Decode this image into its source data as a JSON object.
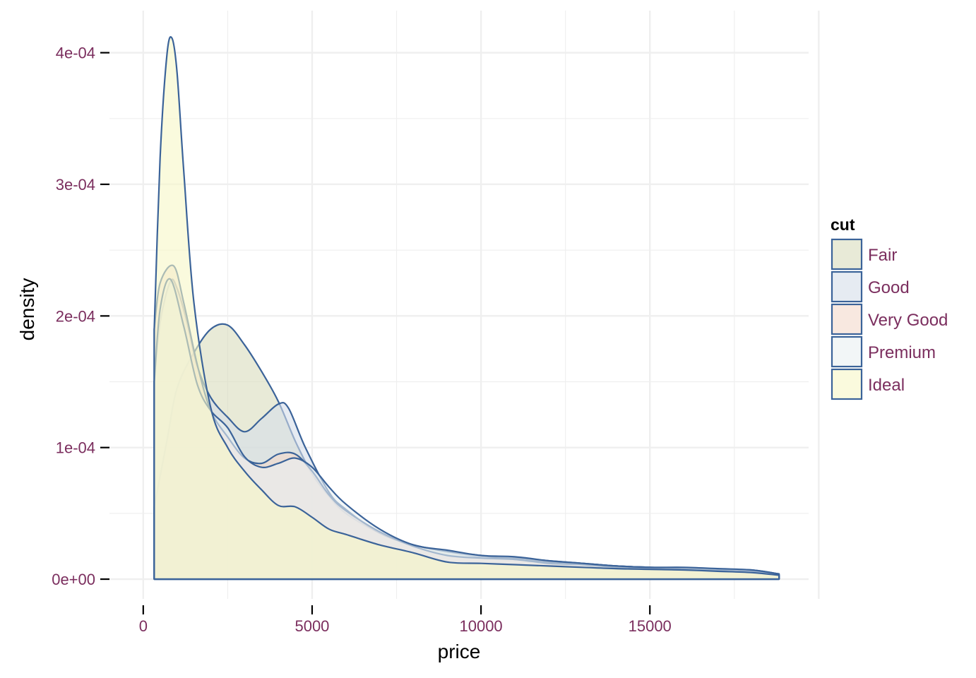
{
  "chart_data": {
    "type": "area",
    "xlabel": "price",
    "ylabel": "density",
    "xlim": [
      -1000,
      19700
    ],
    "ylim": [
      -1.5e-05,
      0.000432
    ],
    "x_ticks": [
      0,
      5000,
      10000,
      15000
    ],
    "x_tick_labels": [
      "0",
      "5000",
      "10000",
      "15000"
    ],
    "y_ticks": [
      0,
      0.0001,
      0.0002,
      0.0003,
      0.0004
    ],
    "y_tick_labels": [
      "0e+00",
      "1e-04",
      "2e-04",
      "3e-04",
      "4e-04"
    ],
    "grid": true,
    "legend": {
      "title": "cut",
      "position": "right"
    },
    "colors": {
      "outline": "#3b6399",
      "tick_label": "#7b2e5e",
      "grid": "#efefef",
      "legend_border": "#3b6399"
    },
    "series": [
      {
        "name": "Fair",
        "fill": "#d8dcbc",
        "x": [
          326,
          700,
          1000,
          1500,
          2000,
          2500,
          3000,
          3500,
          4000,
          4500,
          5000,
          5500,
          6000,
          7000,
          8000,
          9000,
          10000,
          11000,
          12000,
          13000,
          14000,
          15000,
          16000,
          17000,
          18000,
          18823
        ],
        "y": [
          5.5e-05,
          0.000105,
          0.000145,
          0.000172,
          0.00019,
          0.000193,
          0.000178,
          0.000158,
          0.000135,
          0.000105,
          8e-05,
          6.3e-05,
          5e-05,
          3.5e-05,
          2.6e-05,
          2.1e-05,
          1.7e-05,
          1.6e-05,
          1.4e-05,
          1.2e-05,
          1e-05,
          9e-06,
          8e-06,
          7.5e-06,
          7e-06,
          4e-06
        ]
      },
      {
        "name": "Good",
        "fill": "#d5deea",
        "x": [
          326,
          500,
          800,
          1000,
          1300,
          1600,
          2000,
          2500,
          3000,
          3500,
          4000,
          4300,
          4800,
          5500,
          6000,
          7000,
          8000,
          9000,
          10000,
          11000,
          12000,
          13000,
          14000,
          15000,
          16000,
          17000,
          18000,
          18823
        ],
        "y": [
          0.00015,
          0.000195,
          0.000226,
          0.000221,
          0.000195,
          0.000162,
          0.000138,
          0.000123,
          0.000112,
          0.000122,
          0.000133,
          0.00013,
          0.0001,
          6.6e-05,
          5.3e-05,
          3.5e-05,
          2.6e-05,
          2.1e-05,
          1.8e-05,
          1.5e-05,
          1.3e-05,
          1.2e-05,
          1e-05,
          9e-06,
          8e-06,
          6.5e-06,
          6e-06,
          3e-06
        ]
      },
      {
        "name": "Very Good",
        "fill": "#f3d8cb",
        "x": [
          326,
          500,
          900,
          1200,
          1600,
          2000,
          2500,
          3000,
          3500,
          4000,
          4500,
          5000,
          5500,
          6000,
          7000,
          8000,
          9000,
          10000,
          11000,
          12000,
          13000,
          14000,
          15000,
          16000,
          17000,
          18000,
          18823
        ],
        "y": [
          0.00019,
          0.000225,
          0.000238,
          0.00021,
          0.000163,
          0.000128,
          0.000108,
          9.2e-05,
          8.8e-05,
          9.5e-05,
          9.5e-05,
          8.2e-05,
          6.4e-05,
          5.2e-05,
          3.6e-05,
          2.5e-05,
          1.8e-05,
          1.6e-05,
          1.5e-05,
          1.2e-05,
          1.1e-05,
          9e-06,
          8e-06,
          8e-06,
          7e-06,
          6e-06,
          3e-06
        ]
      },
      {
        "name": "Premium",
        "fill": "#e9f0f1",
        "x": [
          326,
          500,
          800,
          1200,
          1600,
          2000,
          2500,
          3000,
          3500,
          4000,
          4500,
          5000,
          5500,
          6000,
          7000,
          8000,
          9000,
          10000,
          11000,
          12000,
          13000,
          14000,
          15000,
          16000,
          17000,
          18000,
          18823
        ],
        "y": [
          0.00015,
          0.000205,
          0.000228,
          0.000192,
          0.000148,
          0.000128,
          0.000115,
          9.3e-05,
          8.5e-05,
          8.8e-05,
          9.2e-05,
          8.5e-05,
          7e-05,
          5.7e-05,
          3.8e-05,
          2.6e-05,
          2.2e-05,
          1.8e-05,
          1.7e-05,
          1.4e-05,
          1.2e-05,
          1e-05,
          9e-06,
          9e-06,
          8e-06,
          7e-06,
          4e-06
        ]
      },
      {
        "name": "Ideal",
        "fill": "#f7f7c6",
        "x": [
          326,
          500,
          700,
          850,
          1000,
          1200,
          1500,
          2000,
          2500,
          3000,
          3500,
          4000,
          4500,
          5000,
          5500,
          6000,
          7000,
          8000,
          9000,
          10000,
          11000,
          12000,
          13000,
          14000,
          15000,
          16000,
          17000,
          18000,
          18823
        ],
        "y": [
          0.00019,
          0.00032,
          0.000398,
          0.000411,
          0.000385,
          0.00031,
          0.00021,
          0.00013,
          0.0001,
          8.2e-05,
          6.8e-05,
          5.6e-05,
          5.5e-05,
          4.7e-05,
          3.8e-05,
          3.4e-05,
          2.6e-05,
          2e-05,
          1.3e-05,
          1.2e-05,
          1.1e-05,
          1e-05,
          9e-06,
          8e-06,
          7.5e-06,
          7e-06,
          6e-06,
          5e-06,
          3e-06
        ]
      }
    ]
  }
}
